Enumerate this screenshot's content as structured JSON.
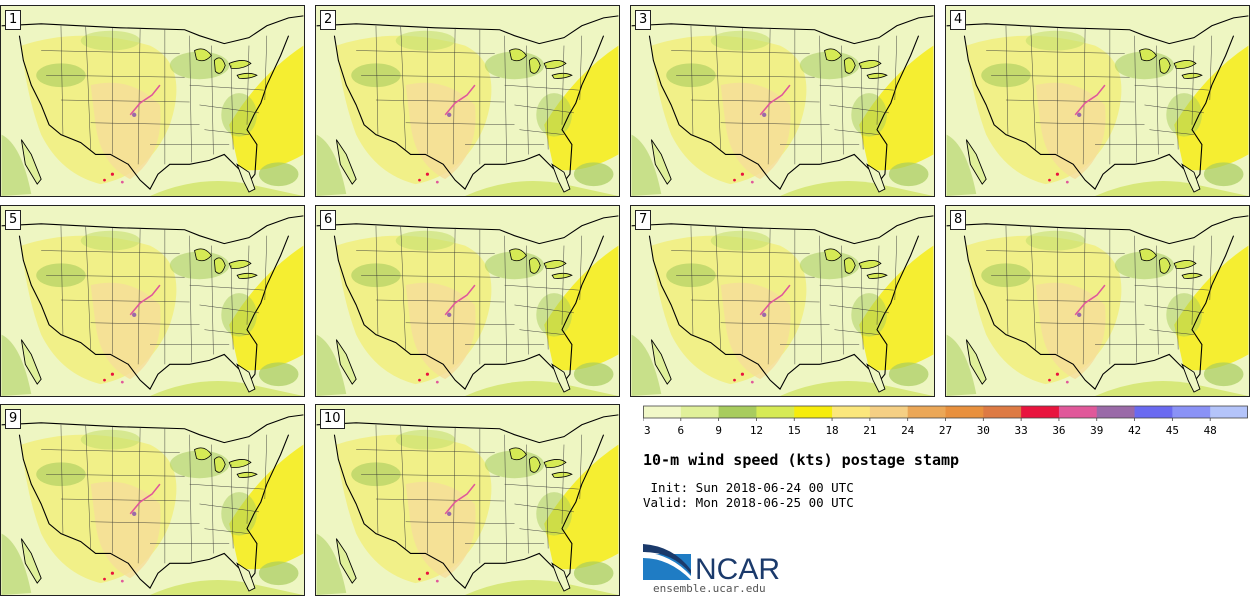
{
  "title": "10-m wind speed (kts) postage stamp",
  "init_label": " Init: Sun 2018-06-24 00 UTC",
  "valid_label": "Valid: Mon 2018-06-25 00 UTC",
  "panels": [
    {
      "number": "1"
    },
    {
      "number": "2"
    },
    {
      "number": "3"
    },
    {
      "number": "4"
    },
    {
      "number": "5"
    },
    {
      "number": "6"
    },
    {
      "number": "7"
    },
    {
      "number": "8"
    },
    {
      "number": "9"
    },
    {
      "number": "10"
    }
  ],
  "colorbar": {
    "ticks": [
      "3",
      "6",
      "9",
      "12",
      "15",
      "18",
      "21",
      "24",
      "27",
      "30",
      "33",
      "36",
      "39",
      "42",
      "45",
      "48"
    ],
    "colors": [
      "#f1f8c8",
      "#e0f09a",
      "#a8cc5e",
      "#d6ea55",
      "#f6ec0c",
      "#fbe77c",
      "#f5cf84",
      "#eba757",
      "#e8903e",
      "#dd7a44",
      "#e8143e",
      "#e0589a",
      "#9a6aa8",
      "#6a6af0",
      "#8a92f6",
      "#b4c4fa"
    ]
  },
  "branding": {
    "logo_text": "NCAR",
    "url": "ensemble.ucar.edu",
    "colors": {
      "blue": "#1b3a6b",
      "light": "#1f7cc4"
    }
  }
}
